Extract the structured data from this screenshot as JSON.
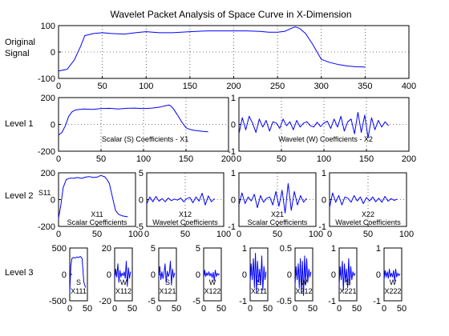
{
  "figure": {
    "title": "Wavelet Packet Analysis of Space Curve in X-Dimension",
    "row_labels": {
      "original": [
        "Original",
        "Signal"
      ],
      "level1": "Level 1",
      "level2": "Level 2",
      "level3": "Level 3"
    },
    "colors": {
      "line": "#0000ff",
      "axes": "#000000",
      "background": "#ffffff"
    }
  },
  "chart_data": [
    {
      "id": "original",
      "type": "line",
      "xlim": [
        0,
        400
      ],
      "ylim": [
        -100,
        100
      ],
      "xticks": [
        0,
        50,
        100,
        150,
        200,
        250,
        300,
        350,
        400
      ],
      "yticks": [
        -100,
        0,
        100
      ],
      "grid": true,
      "texts": [],
      "series": [
        {
          "x": [
            0,
            10,
            18,
            25,
            30,
            40,
            50,
            60,
            75,
            90,
            100,
            115,
            130,
            150,
            170,
            190,
            200,
            215,
            230,
            240,
            250,
            258,
            262,
            266,
            270,
            275,
            282,
            290,
            300,
            310,
            320,
            330,
            340,
            350
          ],
          "y": [
            -72,
            -65,
            -30,
            20,
            62,
            70,
            73,
            70,
            68,
            74,
            77,
            73,
            73,
            77,
            80,
            80,
            80,
            80,
            78,
            75,
            75,
            78,
            84,
            90,
            95,
            90,
            70,
            30,
            -28,
            -40,
            -48,
            -53,
            -56,
            -57
          ]
        }
      ]
    },
    {
      "id": "X1",
      "type": "line",
      "xlim": [
        0,
        200
      ],
      "ylim": [
        -200,
        200
      ],
      "xticks": [
        0,
        50,
        100,
        150,
        200
      ],
      "yticks": [
        -200,
        0,
        200
      ],
      "grid": true,
      "texts": [
        "Scalar (S) Coefficients - X1"
      ],
      "series": [
        {
          "x": [
            0,
            4,
            8,
            12,
            16,
            20,
            25,
            30,
            40,
            50,
            60,
            70,
            80,
            90,
            100,
            110,
            120,
            125,
            130,
            132,
            135,
            140,
            145,
            150,
            155,
            160,
            170,
            176
          ],
          "y": [
            -80,
            -60,
            -10,
            60,
            95,
            108,
            112,
            115,
            112,
            118,
            120,
            115,
            120,
            122,
            118,
            122,
            130,
            138,
            145,
            138,
            118,
            70,
            18,
            -25,
            -38,
            -45,
            -52,
            -55
          ]
        }
      ]
    },
    {
      "id": "X2",
      "type": "line",
      "xlim": [
        0,
        200
      ],
      "ylim": [
        -1,
        1
      ],
      "xticks": [
        0,
        50,
        100,
        150,
        200
      ],
      "yticks": [
        -1,
        0,
        1
      ],
      "grid": true,
      "texts": [
        "Wavelet (W) Coefficients - X2"
      ],
      "series": [
        {
          "x": [
            0,
            4,
            8,
            12,
            16,
            20,
            24,
            28,
            32,
            36,
            40,
            44,
            48,
            52,
            56,
            60,
            64,
            68,
            72,
            76,
            80,
            84,
            88,
            92,
            96,
            100,
            104,
            108,
            112,
            116,
            120,
            124,
            128,
            132,
            136,
            140,
            144,
            148,
            152,
            156,
            160,
            164,
            168,
            172,
            176
          ],
          "y": [
            -0.35,
            0.25,
            -0.2,
            0.3,
            0.05,
            -0.3,
            0.2,
            -0.1,
            0.15,
            -0.25,
            0.1,
            0.05,
            -0.15,
            0.2,
            -0.05,
            0.1,
            -0.2,
            0.15,
            -0.1,
            0.05,
            0.1,
            -0.05,
            -0.1,
            0.08,
            -0.08,
            0.05,
            0.12,
            -0.15,
            0.2,
            -0.1,
            0.3,
            -0.25,
            0.1,
            0.2,
            -0.35,
            0.45,
            -0.3,
            0.35,
            -0.5,
            0.25,
            -0.2,
            0.15,
            -0.1,
            0.1,
            -0.05
          ]
        }
      ]
    },
    {
      "id": "X11",
      "type": "line",
      "xlim": [
        0,
        100
      ],
      "ylim": [
        -200,
        200
      ],
      "xticks": [
        0,
        50,
        100
      ],
      "yticks": [
        -200,
        0,
        200
      ],
      "grid": false,
      "texts": [
        "S11",
        "X11",
        "Scalar Coefficients"
      ],
      "series": [
        {
          "x": [
            0,
            3,
            6,
            10,
            15,
            20,
            25,
            30,
            35,
            40,
            45,
            50,
            55,
            60,
            63,
            66,
            70,
            74,
            78,
            82,
            86,
            90
          ],
          "y": [
            -140,
            -40,
            90,
            150,
            160,
            160,
            165,
            158,
            168,
            172,
            165,
            168,
            180,
            170,
            150,
            120,
            20,
            -80,
            -110,
            -120,
            -125,
            -128
          ]
        }
      ]
    },
    {
      "id": "X12",
      "type": "line",
      "xlim": [
        0,
        100
      ],
      "ylim": [
        -5,
        5
      ],
      "xticks": [
        0,
        50,
        100
      ],
      "yticks": [
        -5,
        0,
        5
      ],
      "grid": true,
      "texts": [
        "X12",
        "Wavelet Coefficients"
      ],
      "series": [
        {
          "x": [
            0,
            4,
            8,
            12,
            16,
            20,
            24,
            28,
            32,
            36,
            40,
            44,
            48,
            52,
            56,
            60,
            64,
            68,
            72,
            76,
            80,
            84,
            88
          ],
          "y": [
            -0.8,
            0.5,
            -0.4,
            0.6,
            -0.3,
            0.2,
            -0.4,
            0.3,
            -0.2,
            0.1,
            -0.1,
            0.3,
            -0.4,
            0.2,
            0.4,
            -0.6,
            0.5,
            -0.3,
            1.2,
            -1.0,
            0.7,
            -0.4,
            0.2
          ]
        }
      ]
    },
    {
      "id": "X21",
      "type": "line",
      "xlim": [
        0,
        100
      ],
      "ylim": [
        -1,
        1
      ],
      "xticks": [
        0,
        50,
        100
      ],
      "yticks": [
        -1,
        0,
        1
      ],
      "grid": true,
      "texts": [
        "X21",
        "Scalar Coefficients"
      ],
      "series": [
        {
          "x": [
            0,
            4,
            8,
            12,
            16,
            20,
            24,
            28,
            32,
            36,
            40,
            44,
            48,
            52,
            56,
            60,
            64,
            68,
            72,
            76,
            80,
            84,
            88
          ],
          "y": [
            -0.2,
            0.25,
            -0.15,
            0.1,
            -0.05,
            0.2,
            -0.3,
            0.15,
            -0.1,
            0.05,
            0.1,
            -0.2,
            0.3,
            -0.25,
            0.35,
            -0.5,
            0.6,
            -0.4,
            0.3,
            -0.2,
            0.15,
            -0.1,
            0.05
          ]
        }
      ]
    },
    {
      "id": "X22",
      "type": "line",
      "xlim": [
        0,
        100
      ],
      "ylim": [
        -1,
        1
      ],
      "xticks": [
        0,
        50,
        100
      ],
      "yticks": [
        -1,
        0,
        1
      ],
      "grid": true,
      "texts": [
        "X22",
        "Wavelet Coefficients"
      ],
      "series": [
        {
          "x": [
            0,
            4,
            8,
            12,
            16,
            20,
            24,
            28,
            32,
            36,
            40,
            44,
            48,
            52,
            56,
            60,
            64,
            68,
            72,
            76,
            80,
            84,
            88
          ],
          "y": [
            -0.3,
            0.25,
            -0.1,
            0.15,
            -0.2,
            0.1,
            0.05,
            -0.1,
            0.15,
            -0.05,
            0.1,
            -0.15,
            0.08,
            -0.05,
            0.1,
            -0.08,
            0.05,
            -0.1,
            0.12,
            -0.06,
            0.04,
            -0.03,
            0.02
          ]
        }
      ]
    },
    {
      "id": "X111",
      "type": "line",
      "xlim": [
        0,
        50
      ],
      "ylim": [
        -500,
        500
      ],
      "xticks": [
        0,
        50
      ],
      "yticks": [
        -500,
        0,
        500
      ],
      "grid": false,
      "texts": [
        "S",
        "X111"
      ],
      "series": [
        {
          "x": [
            0,
            3,
            6,
            10,
            15,
            20,
            25,
            30,
            35,
            40,
            45
          ],
          "y": [
            -350,
            150,
            300,
            320,
            310,
            330,
            320,
            340,
            300,
            -150,
            -250
          ]
        }
      ]
    },
    {
      "id": "X112",
      "type": "line",
      "xlim": [
        0,
        50
      ],
      "ylim": [
        -20,
        20
      ],
      "xticks": [
        0,
        50
      ],
      "yticks": [
        -20,
        0,
        20
      ],
      "grid": false,
      "texts": [
        "W",
        "X112"
      ],
      "series": [
        {
          "x": [
            0,
            3,
            6,
            9,
            12,
            15,
            18,
            21,
            24,
            27,
            30,
            33,
            36,
            39,
            42,
            45
          ],
          "y": [
            -3,
            4,
            -2,
            8,
            -6,
            3,
            -2,
            1,
            -1,
            2,
            -3,
            10,
            -9,
            5,
            -3,
            2
          ]
        }
      ]
    },
    {
      "id": "X121",
      "type": "line",
      "xlim": [
        0,
        50
      ],
      "ylim": [
        -5,
        5
      ],
      "xticks": [
        0,
        50
      ],
      "yticks": [
        -5,
        0,
        5
      ],
      "grid": false,
      "texts": [
        "S",
        "X121"
      ],
      "series": [
        {
          "x": [
            0,
            3,
            6,
            9,
            12,
            15,
            18,
            21,
            24,
            27,
            30,
            33,
            36,
            39,
            42,
            45
          ],
          "y": [
            -0.5,
            1.5,
            -1,
            0.5,
            -0.8,
            0.3,
            2,
            -1.5,
            0.6,
            -0.4,
            0.2,
            2.5,
            -2,
            1,
            -0.6,
            0.3
          ]
        }
      ]
    },
    {
      "id": "X122",
      "type": "line",
      "xlim": [
        0,
        50
      ],
      "ylim": [
        -5,
        5
      ],
      "xticks": [
        0,
        50
      ],
      "yticks": [
        -5,
        0,
        5
      ],
      "grid": false,
      "texts": [
        "W",
        "X122"
      ],
      "series": [
        {
          "x": [
            0,
            3,
            6,
            9,
            12,
            15,
            18,
            21,
            24,
            27,
            30,
            33,
            36,
            39,
            42,
            45
          ],
          "y": [
            -0.6,
            0.8,
            -0.4,
            0.3,
            -0.2,
            0.5,
            -0.3,
            0.2,
            -0.6,
            0.4,
            -1.2,
            0.8,
            -0.4,
            0.2,
            -0.1,
            0.1
          ]
        }
      ]
    },
    {
      "id": "X211",
      "type": "line",
      "xlim": [
        0,
        50
      ],
      "ylim": [
        -1,
        1
      ],
      "xticks": [
        0,
        50
      ],
      "yticks": [
        -1,
        0,
        1
      ],
      "grid": false,
      "texts": [
        "S",
        "X211"
      ],
      "series": [
        {
          "x": [
            0,
            3,
            6,
            9,
            12,
            15,
            18,
            21,
            24,
            27,
            30,
            33,
            36,
            39,
            42,
            45
          ],
          "y": [
            -0.3,
            0.4,
            -0.2,
            0.6,
            -0.5,
            0.8,
            -0.7,
            0.5,
            -0.3,
            0.2,
            -0.4,
            0.7,
            -0.6,
            0.3,
            -0.2,
            0.1
          ]
        }
      ]
    },
    {
      "id": "X212",
      "type": "line",
      "xlim": [
        0,
        50
      ],
      "ylim": [
        -0.5,
        0.5
      ],
      "xticks": [
        0,
        50
      ],
      "yticks": [
        -0.5,
        0,
        0.5
      ],
      "grid": false,
      "texts": [
        "W",
        "X212"
      ],
      "series": [
        {
          "x": [
            0,
            3,
            6,
            9,
            12,
            15,
            18,
            21,
            24,
            27,
            30,
            33,
            36,
            39,
            42,
            45
          ],
          "y": [
            -0.2,
            0.15,
            -0.1,
            0.2,
            -0.25,
            0.3,
            -0.35,
            0.25,
            -0.4,
            0.35,
            -0.2,
            0.3,
            -0.15,
            0.1,
            -0.05,
            0.05
          ]
        }
      ]
    },
    {
      "id": "X221",
      "type": "line",
      "xlim": [
        0,
        50
      ],
      "ylim": [
        -1,
        1
      ],
      "xticks": [
        0,
        50
      ],
      "yticks": [
        -1,
        0,
        1
      ],
      "grid": false,
      "texts": [
        "S",
        "X221"
      ],
      "series": [
        {
          "x": [
            0,
            3,
            6,
            9,
            12,
            15,
            18,
            21,
            24,
            27,
            30,
            33,
            36,
            39,
            42,
            45
          ],
          "y": [
            -0.4,
            0.3,
            -0.2,
            0.5,
            -0.6,
            0.4,
            -0.3,
            0.2,
            -0.5,
            0.6,
            -0.4,
            0.3,
            -0.2,
            0.1,
            -0.05,
            0.05
          ]
        }
      ]
    },
    {
      "id": "X222",
      "type": "line",
      "xlim": [
        0,
        50
      ],
      "ylim": [
        -1,
        1
      ],
      "xticks": [
        0,
        50
      ],
      "yticks": [
        -1,
        0,
        1
      ],
      "grid": false,
      "texts": [
        "W",
        "X222"
      ],
      "series": [
        {
          "x": [
            0,
            3,
            6,
            9,
            12,
            15,
            18,
            21,
            24,
            27,
            30,
            33,
            36,
            39,
            42,
            45
          ],
          "y": [
            -0.2,
            0.15,
            -0.1,
            0.1,
            -0.15,
            0.2,
            -0.1,
            0.05,
            -0.1,
            0.15,
            -0.25,
            0.2,
            -0.1,
            0.05,
            -0.05,
            0.02
          ]
        }
      ]
    }
  ]
}
